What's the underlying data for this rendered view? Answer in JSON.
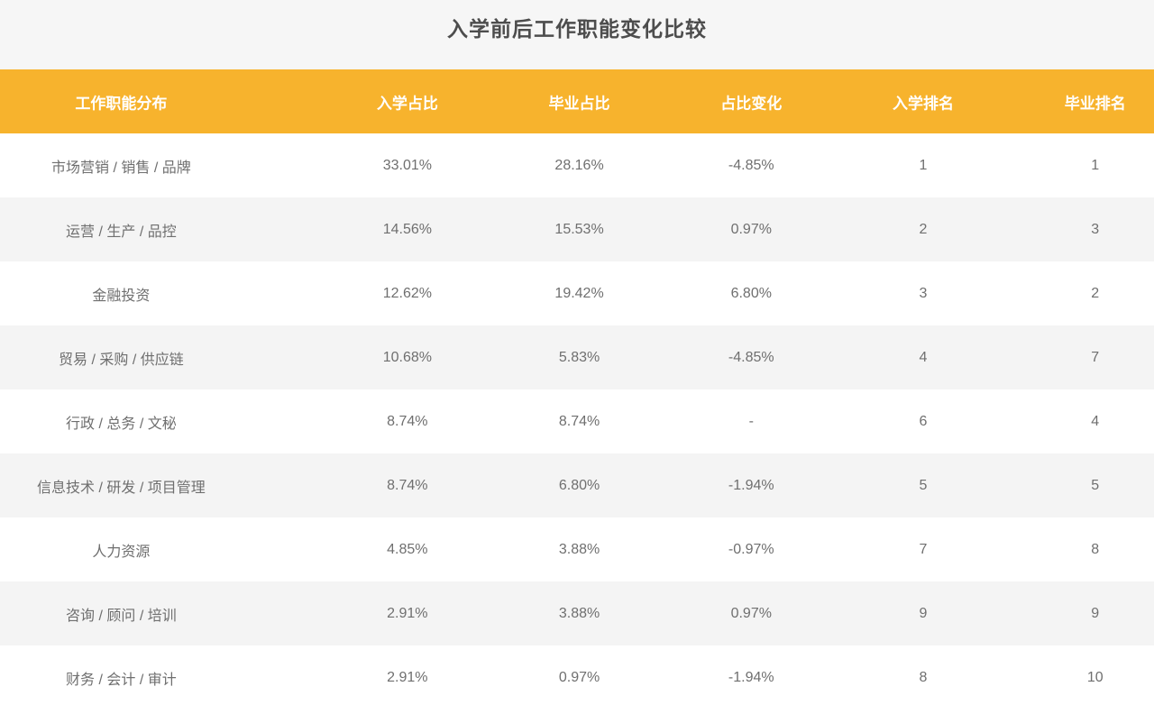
{
  "title": "入学前后工作职能变化比较",
  "colors": {
    "header_bg": "#F7B32D",
    "title_bg": "#F6F6F6",
    "stripe_bg": "#F4F4F4",
    "header_text": "#FFFFFF",
    "body_text": "#6F6F6F",
    "title_text": "#4D4D4D"
  },
  "table": {
    "columns": [
      "工作职能分布",
      "入学占比",
      "毕业占比",
      "占比变化",
      "入学排名",
      "毕业排名"
    ],
    "rows": [
      [
        "市场营销 / 销售 / 品牌",
        "33.01%",
        "28.16%",
        "-4.85%",
        "1",
        "1"
      ],
      [
        "运营 / 生产 / 品控",
        "14.56%",
        "15.53%",
        "0.97%",
        "2",
        "3"
      ],
      [
        "金融投资",
        "12.62%",
        "19.42%",
        "6.80%",
        "3",
        "2"
      ],
      [
        "贸易 / 采购 / 供应链",
        "10.68%",
        "5.83%",
        "-4.85%",
        "4",
        "7"
      ],
      [
        "行政 / 总务 / 文秘",
        "8.74%",
        "8.74%",
        "-",
        "6",
        "4"
      ],
      [
        "信息技术 / 研发 / 项目管理",
        "8.74%",
        "6.80%",
        "-1.94%",
        "5",
        "5"
      ],
      [
        "人力资源",
        "4.85%",
        "3.88%",
        "-0.97%",
        "7",
        "8"
      ],
      [
        "咨询 / 顾问 / 培训",
        "2.91%",
        "3.88%",
        "0.97%",
        "9",
        "9"
      ],
      [
        "财务 / 会计 / 审计",
        "2.91%",
        "0.97%",
        "-1.94%",
        "8",
        "10"
      ]
    ]
  },
  "chart_data": {
    "type": "table",
    "title": "入学前后工作职能变化比较",
    "columns": [
      "工作职能分布",
      "入学占比",
      "毕业占比",
      "占比变化",
      "入学排名",
      "毕业排名"
    ],
    "rows": [
      {
        "function": "市场营销 / 销售 / 品牌",
        "enroll_pct": 33.01,
        "grad_pct": 28.16,
        "change_pct": -4.85,
        "enroll_rank": 1,
        "grad_rank": 1
      },
      {
        "function": "运营 / 生产 / 品控",
        "enroll_pct": 14.56,
        "grad_pct": 15.53,
        "change_pct": 0.97,
        "enroll_rank": 2,
        "grad_rank": 3
      },
      {
        "function": "金融投资",
        "enroll_pct": 12.62,
        "grad_pct": 19.42,
        "change_pct": 6.8,
        "enroll_rank": 3,
        "grad_rank": 2
      },
      {
        "function": "贸易 / 采购 / 供应链",
        "enroll_pct": 10.68,
        "grad_pct": 5.83,
        "change_pct": -4.85,
        "enroll_rank": 4,
        "grad_rank": 7
      },
      {
        "function": "行政 / 总务 / 文秘",
        "enroll_pct": 8.74,
        "grad_pct": 8.74,
        "change_pct": null,
        "enroll_rank": 6,
        "grad_rank": 4
      },
      {
        "function": "信息技术 / 研发 / 项目管理",
        "enroll_pct": 8.74,
        "grad_pct": 6.8,
        "change_pct": -1.94,
        "enroll_rank": 5,
        "grad_rank": 5
      },
      {
        "function": "人力资源",
        "enroll_pct": 4.85,
        "grad_pct": 3.88,
        "change_pct": -0.97,
        "enroll_rank": 7,
        "grad_rank": 8
      },
      {
        "function": "咨询 / 顾问 / 培训",
        "enroll_pct": 2.91,
        "grad_pct": 3.88,
        "change_pct": 0.97,
        "enroll_rank": 9,
        "grad_rank": 9
      },
      {
        "function": "财务 / 会计 / 审计",
        "enroll_pct": 2.91,
        "grad_pct": 0.97,
        "change_pct": -1.94,
        "enroll_rank": 8,
        "grad_rank": 10
      }
    ],
    "layout": {
      "header_style": "orange band, white bold centered text",
      "zebra_striping": true,
      "grid": false,
      "alignment": "all columns center-aligned"
    }
  }
}
